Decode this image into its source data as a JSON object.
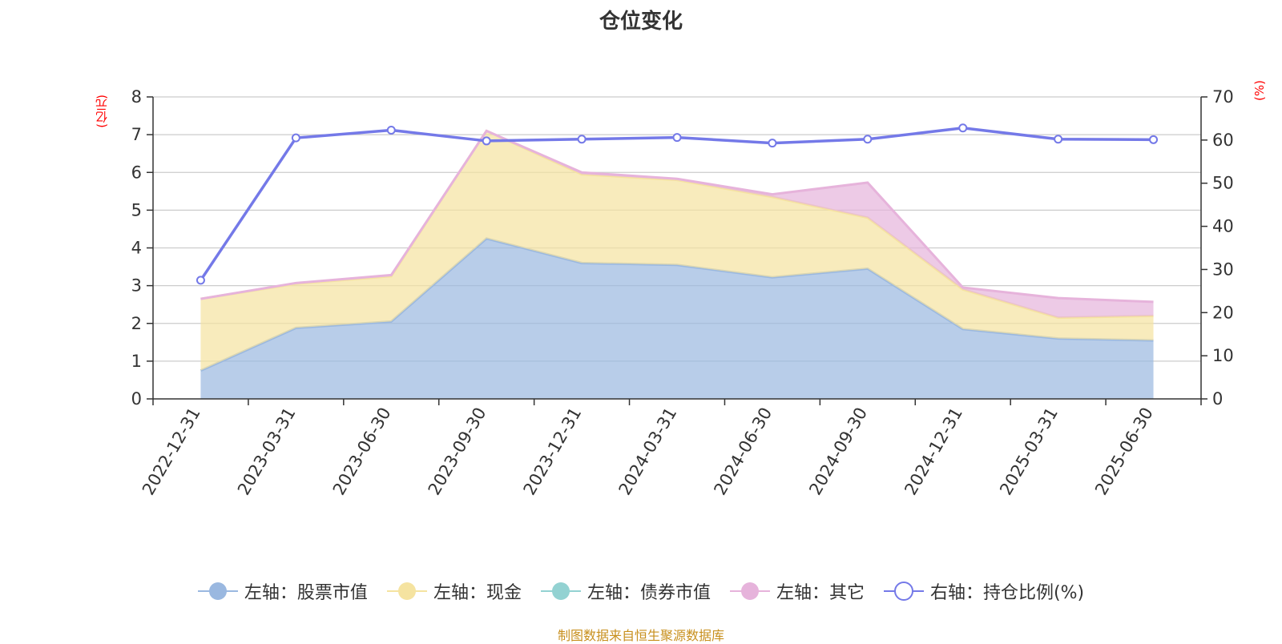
{
  "chart_data": {
    "type": "area",
    "title": "仓位变化",
    "y_left_unit": "(亿元)",
    "y_right_unit": "(%)",
    "categories": [
      "2022-12-31",
      "2023-03-31",
      "2023-06-30",
      "2023-09-30",
      "2023-12-31",
      "2024-03-31",
      "2024-06-30",
      "2024-09-30",
      "2024-12-31",
      "2025-03-31",
      "2025-06-30"
    ],
    "y_left_ticks": [
      "0",
      "1",
      "2",
      "3",
      "4",
      "5",
      "6",
      "7",
      "8"
    ],
    "y_right_ticks": [
      "0",
      "10",
      "20",
      "30",
      "40",
      "50",
      "60",
      "70"
    ],
    "ylim_left": [
      0,
      8
    ],
    "ylim_right": [
      0,
      70
    ],
    "grid": true,
    "legend_position": "bottom",
    "stacked": true,
    "series": [
      {
        "name": "左轴：股票市值",
        "axis": "left",
        "color": "#9ab8e0",
        "values": [
          0.75,
          1.88,
          2.05,
          4.25,
          3.6,
          3.55,
          3.22,
          3.45,
          1.85,
          1.6,
          1.55
        ]
      },
      {
        "name": "左轴：现金",
        "axis": "left",
        "color": "#f5e3a0",
        "values": [
          1.9,
          1.17,
          1.2,
          2.85,
          2.35,
          2.25,
          2.13,
          1.35,
          1.05,
          0.55,
          0.65
        ]
      },
      {
        "name": "左轴：债券市值",
        "axis": "left",
        "color": "#93d2d2",
        "values": [
          0,
          0,
          0,
          0,
          0,
          0,
          0,
          0,
          0,
          0,
          0
        ]
      },
      {
        "name": "左轴：其它",
        "axis": "left",
        "color": "#e6b3db",
        "values": [
          0.0,
          0.02,
          0.03,
          0.0,
          0.05,
          0.03,
          0.07,
          0.93,
          0.05,
          0.52,
          0.37
        ]
      },
      {
        "name": "右轴：持仓比例(%)",
        "axis": "right",
        "color": "#7479e8",
        "values": [
          27.5,
          60.5,
          62.3,
          59.8,
          60.2,
          60.6,
          59.3,
          60.2,
          62.8,
          60.2,
          60.1
        ]
      }
    ]
  },
  "source_text": "制图数据来自恒生聚源数据库"
}
